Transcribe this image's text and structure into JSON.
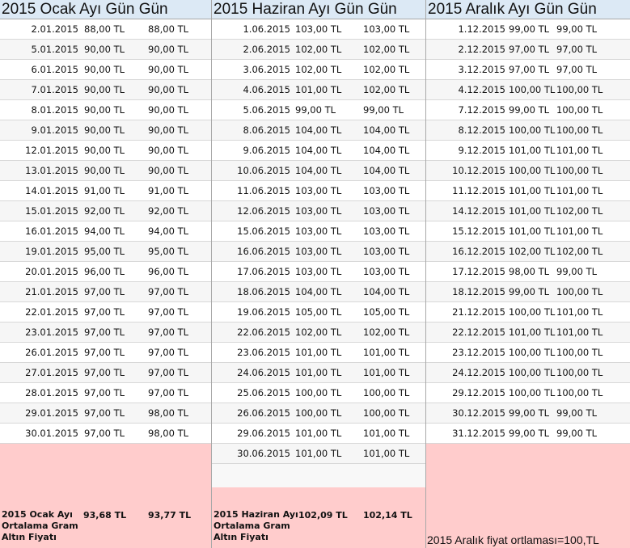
{
  "columns": [
    {
      "header": "2015 Ocak Ayı Gün Gün",
      "rows": [
        [
          "2.01.2015",
          "88,00 TL",
          "88,00 TL"
        ],
        [
          "5.01.2015",
          "90,00 TL",
          "90,00 TL"
        ],
        [
          "6.01.2015",
          "90,00 TL",
          "90,00 TL"
        ],
        [
          "7.01.2015",
          "90,00 TL",
          "90,00 TL"
        ],
        [
          "8.01.2015",
          "90,00 TL",
          "90,00 TL"
        ],
        [
          "9.01.2015",
          "90,00 TL",
          "90,00 TL"
        ],
        [
          "12.01.2015",
          "90,00 TL",
          "90,00 TL"
        ],
        [
          "13.01.2015",
          "90,00 TL",
          "90,00 TL"
        ],
        [
          "14.01.2015",
          "91,00 TL",
          "91,00 TL"
        ],
        [
          "15.01.2015",
          "92,00 TL",
          "92,00 TL"
        ],
        [
          "16.01.2015",
          "94,00 TL",
          "94,00 TL"
        ],
        [
          "19.01.2015",
          "95,00 TL",
          "95,00 TL"
        ],
        [
          "20.01.2015",
          "96,00 TL",
          "96,00 TL"
        ],
        [
          "21.01.2015",
          "97,00 TL",
          "97,00 TL"
        ],
        [
          "22.01.2015",
          "97,00 TL",
          "97,00 TL"
        ],
        [
          "23.01.2015",
          "97,00 TL",
          "97,00 TL"
        ],
        [
          "26.01.2015",
          "97,00 TL",
          "97,00 TL"
        ],
        [
          "27.01.2015",
          "97,00 TL",
          "97,00 TL"
        ],
        [
          "28.01.2015",
          "97,00 TL",
          "97,00 TL"
        ],
        [
          "29.01.2015",
          "97,00 TL",
          "98,00 TL"
        ],
        [
          "30.01.2015",
          "97,00 TL",
          "98,00 TL"
        ]
      ],
      "summary": {
        "label": "2015 Ocak Ayı Ortalama Gram Altın Fiyatı",
        "value1": "93,68 TL",
        "value2": "93,77 TL"
      }
    },
    {
      "header": "2015 Haziran Ayı Gün Gün",
      "rows": [
        [
          "1.06.2015",
          "103,00 TL",
          "103,00 TL"
        ],
        [
          "2.06.2015",
          "102,00 TL",
          "102,00 TL"
        ],
        [
          "3.06.2015",
          "102,00 TL",
          "102,00 TL"
        ],
        [
          "4.06.2015",
          "101,00 TL",
          "102,00 TL"
        ],
        [
          "5.06.2015",
          "99,00 TL",
          "99,00 TL"
        ],
        [
          "8.06.2015",
          "104,00 TL",
          "104,00 TL"
        ],
        [
          "9.06.2015",
          "104,00 TL",
          "104,00 TL"
        ],
        [
          "10.06.2015",
          "104,00 TL",
          "104,00 TL"
        ],
        [
          "11.06.2015",
          "103,00 TL",
          "103,00 TL"
        ],
        [
          "12.06.2015",
          "103,00 TL",
          "103,00 TL"
        ],
        [
          "15.06.2015",
          "103,00 TL",
          "103,00 TL"
        ],
        [
          "16.06.2015",
          "103,00 TL",
          "103,00 TL"
        ],
        [
          "17.06.2015",
          "103,00 TL",
          "103,00 TL"
        ],
        [
          "18.06.2015",
          "104,00 TL",
          "104,00 TL"
        ],
        [
          "19.06.2015",
          "105,00 TL",
          "105,00 TL"
        ],
        [
          "22.06.2015",
          "102,00 TL",
          "102,00 TL"
        ],
        [
          "23.06.2015",
          "101,00 TL",
          "101,00 TL"
        ],
        [
          "24.06.2015",
          "101,00 TL",
          "101,00 TL"
        ],
        [
          "25.06.2015",
          "100,00 TL",
          "100,00 TL"
        ],
        [
          "26.06.2015",
          "100,00 TL",
          "100,00 TL"
        ],
        [
          "29.06.2015",
          "101,00 TL",
          "101,00 TL"
        ],
        [
          "30.06.2015",
          "101,00 TL",
          "101,00 TL"
        ]
      ],
      "summary": {
        "label": "2015 Haziran Ayı Ortalama Gram Altın Fiyatı",
        "value1": "102,09 TL",
        "value2": "102,14 TL"
      }
    },
    {
      "header": "2015 Aralık Ayı Gün Gün",
      "rows": [
        [
          "1.12.2015",
          "99,00 TL",
          "99,00 TL"
        ],
        [
          "2.12.2015",
          "97,00 TL",
          "97,00 TL"
        ],
        [
          "3.12.2015",
          "97,00 TL",
          "97,00 TL"
        ],
        [
          "4.12.2015",
          "100,00 TL",
          "100,00 TL"
        ],
        [
          "7.12.2015",
          "99,00 TL",
          "100,00 TL"
        ],
        [
          "8.12.2015",
          "100,00 TL",
          "100,00 TL"
        ],
        [
          "9.12.2015",
          "101,00 TL",
          "101,00 TL"
        ],
        [
          "10.12.2015",
          "100,00 TL",
          "100,00 TL"
        ],
        [
          "11.12.2015",
          "101,00 TL",
          "101,00 TL"
        ],
        [
          "14.12.2015",
          "101,00 TL",
          "102,00 TL"
        ],
        [
          "15.12.2015",
          "101,00 TL",
          "101,00 TL"
        ],
        [
          "16.12.2015",
          "102,00 TL",
          "102,00 TL"
        ],
        [
          "17.12.2015",
          "98,00 TL",
          "99,00 TL"
        ],
        [
          "18.12.2015",
          "99,00 TL",
          "100,00 TL"
        ],
        [
          "21.12.2015",
          "100,00 TL",
          "101,00 TL"
        ],
        [
          "22.12.2015",
          "101,00 TL",
          "101,00 TL"
        ],
        [
          "23.12.2015",
          "100,00 TL",
          "100,00 TL"
        ],
        [
          "24.12.2015",
          "100,00 TL",
          "100,00 TL"
        ],
        [
          "29.12.2015",
          "100,00 TL",
          "100,00 TL"
        ],
        [
          "30.12.2015",
          "99,00 TL",
          "99,00 TL"
        ],
        [
          "31.12.2015",
          "99,00 TL",
          "99,00 TL"
        ]
      ],
      "note": "2015 Aralık fiyat ortlaması=100,TL"
    }
  ]
}
